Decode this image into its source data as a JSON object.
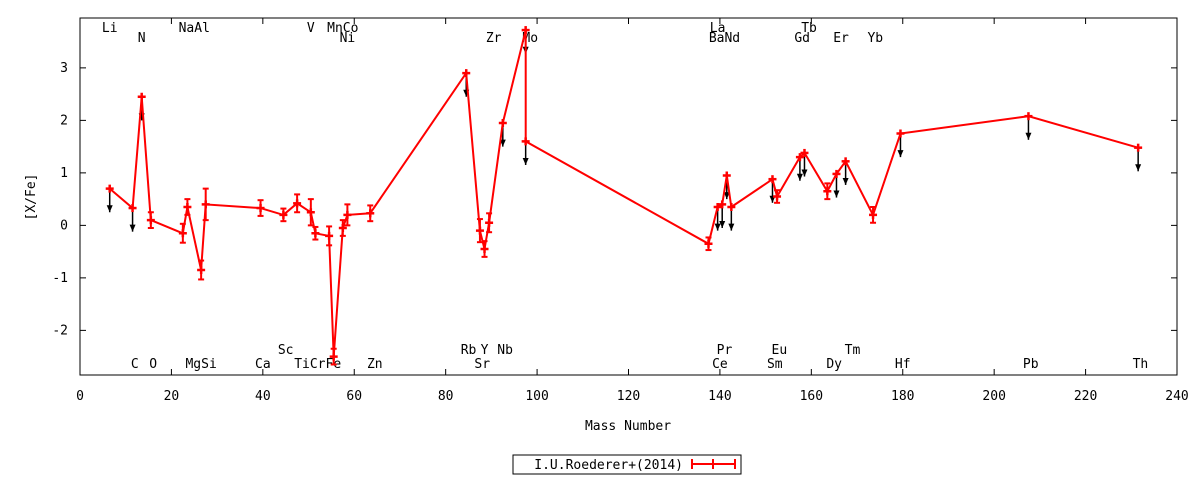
{
  "chart_data": {
    "type": "scatter",
    "title": "",
    "xlabel": "Mass Number",
    "ylabel": "[X/Fe]",
    "xlim": [
      0,
      240
    ],
    "ylim": [
      -2.85,
      3.95
    ],
    "xticks": [
      0,
      20,
      40,
      60,
      80,
      100,
      120,
      140,
      160,
      180,
      200,
      220,
      240
    ],
    "yticks": [
      -2,
      -1,
      0,
      1,
      2,
      3
    ],
    "grid": false,
    "legend_position": "bottom-center",
    "colors": {
      "series": "#ff0000",
      "upper_limit": "#000000"
    },
    "series": [
      {
        "name": "I.U.Roederer+(2014)",
        "points": [
          {
            "x": 6.5,
            "y": 0.7,
            "err": 0.0,
            "upper_limit": true
          },
          {
            "x": 11.5,
            "y": 0.33,
            "err": 0.0,
            "upper_limit": true
          },
          {
            "x": 13.5,
            "y": 2.45,
            "err": 0.0,
            "upper_limit": true
          },
          {
            "x": 15.5,
            "y": 0.1,
            "err": 0.15,
            "upper_limit": false
          },
          {
            "x": 22.5,
            "y": -0.15,
            "err": 0.18,
            "upper_limit": false
          },
          {
            "x": 23.5,
            "y": 0.35,
            "err": 0.15,
            "upper_limit": false
          },
          {
            "x": 26.5,
            "y": -0.85,
            "err": 0.18,
            "upper_limit": false
          },
          {
            "x": 27.5,
            "y": 0.4,
            "err": 0.3,
            "upper_limit": false
          },
          {
            "x": 39.5,
            "y": 0.33,
            "err": 0.15,
            "upper_limit": false
          },
          {
            "x": 44.5,
            "y": 0.2,
            "err": 0.12,
            "upper_limit": false
          },
          {
            "x": 47.5,
            "y": 0.42,
            "err": 0.17,
            "upper_limit": false
          },
          {
            "x": 50.5,
            "y": 0.25,
            "err": 0.25,
            "upper_limit": false
          },
          {
            "x": 51.5,
            "y": -0.15,
            "err": 0.12,
            "upper_limit": false
          },
          {
            "x": 54.5,
            "y": -0.2,
            "err": 0.18,
            "upper_limit": false
          },
          {
            "x": 55.5,
            "y": -2.5,
            "err": 0.15,
            "upper_limit": false
          },
          {
            "x": 57.5,
            "y": -0.05,
            "err": 0.15,
            "upper_limit": false
          },
          {
            "x": 58.5,
            "y": 0.2,
            "err": 0.2,
            "upper_limit": false
          },
          {
            "x": 63.5,
            "y": 0.23,
            "err": 0.15,
            "upper_limit": false
          },
          {
            "x": 84.5,
            "y": 2.9,
            "err": 0.0,
            "upper_limit": true
          },
          {
            "x": 87.5,
            "y": -0.1,
            "err": 0.22,
            "upper_limit": false
          },
          {
            "x": 88.5,
            "y": -0.45,
            "err": 0.15,
            "upper_limit": false
          },
          {
            "x": 89.5,
            "y": 0.05,
            "err": 0.18,
            "upper_limit": false
          },
          {
            "x": 92.5,
            "y": 1.95,
            "err": 0.0,
            "upper_limit": true
          },
          {
            "x": 97.5,
            "y": 3.72,
            "err": 0.0,
            "upper_limit": true
          },
          {
            "x": 97.5,
            "y": 1.6,
            "err": 0.0,
            "upper_limit": true
          },
          {
            "x": 137.5,
            "y": -0.35,
            "err": 0.12,
            "upper_limit": false
          },
          {
            "x": 139.5,
            "y": 0.35,
            "err": 0.0,
            "upper_limit": true
          },
          {
            "x": 140.5,
            "y": 0.4,
            "err": 0.0,
            "upper_limit": true
          },
          {
            "x": 141.5,
            "y": 0.95,
            "err": 0.0,
            "upper_limit": true
          },
          {
            "x": 142.5,
            "y": 0.35,
            "err": 0.0,
            "upper_limit": true
          },
          {
            "x": 151.5,
            "y": 0.88,
            "err": 0.0,
            "upper_limit": true
          },
          {
            "x": 152.5,
            "y": 0.55,
            "err": 0.12,
            "upper_limit": false
          },
          {
            "x": 157.5,
            "y": 1.3,
            "err": 0.0,
            "upper_limit": true
          },
          {
            "x": 158.5,
            "y": 1.38,
            "err": 0.0,
            "upper_limit": true
          },
          {
            "x": 163.5,
            "y": 0.65,
            "err": 0.15,
            "upper_limit": false
          },
          {
            "x": 165.5,
            "y": 0.98,
            "err": 0.0,
            "upper_limit": true
          },
          {
            "x": 167.5,
            "y": 1.22,
            "err": 0.0,
            "upper_limit": true
          },
          {
            "x": 173.5,
            "y": 0.2,
            "err": 0.15,
            "upper_limit": false
          },
          {
            "x": 179.5,
            "y": 1.75,
            "err": 0.0,
            "upper_limit": true
          },
          {
            "x": 207.5,
            "y": 2.08,
            "err": 0.0,
            "upper_limit": true
          },
          {
            "x": 231.5,
            "y": 1.48,
            "err": 0.0,
            "upper_limit": true
          }
        ]
      }
    ],
    "element_labels": [
      {
        "text": "Li",
        "x": 6.5,
        "row": "top1"
      },
      {
        "text": "N",
        "x": 13.5,
        "row": "top2"
      },
      {
        "text": "NaAl",
        "x": 25.0,
        "row": "top1"
      },
      {
        "text": "V",
        "x": 50.5,
        "row": "top1"
      },
      {
        "text": "MnCo",
        "x": 57.5,
        "row": "top1"
      },
      {
        "text": "Ni",
        "x": 58.5,
        "row": "top2"
      },
      {
        "text": "Zr",
        "x": 90.5,
        "row": "top2"
      },
      {
        "text": "Mo",
        "x": 98.5,
        "row": "top2"
      },
      {
        "text": "La",
        "x": 139.5,
        "row": "top1"
      },
      {
        "text": "BaNd",
        "x": 141.0,
        "row": "top2"
      },
      {
        "text": "Tb",
        "x": 159.5,
        "row": "top1"
      },
      {
        "text": "Gd",
        "x": 158.0,
        "row": "top2"
      },
      {
        "text": "Er",
        "x": 166.5,
        "row": "top2"
      },
      {
        "text": "Yb",
        "x": 174.0,
        "row": "top2"
      },
      {
        "text": "Sc",
        "x": 45.0,
        "row": "bot1"
      },
      {
        "text": "Rb",
        "x": 85.0,
        "row": "bot1"
      },
      {
        "text": "Y",
        "x": 88.5,
        "row": "bot1"
      },
      {
        "text": "Nb",
        "x": 93.0,
        "row": "bot1"
      },
      {
        "text": "Pr",
        "x": 141.0,
        "row": "bot1"
      },
      {
        "text": "Eu",
        "x": 153.0,
        "row": "bot1"
      },
      {
        "text": "Tm",
        "x": 169.0,
        "row": "bot1"
      },
      {
        "text": "C",
        "x": 12.0,
        "row": "bot2"
      },
      {
        "text": "O",
        "x": 16.0,
        "row": "bot2"
      },
      {
        "text": "MgSi",
        "x": 26.5,
        "row": "bot2"
      },
      {
        "text": "Ca",
        "x": 40.0,
        "row": "bot2"
      },
      {
        "text": "TiCrFe",
        "x": 52.0,
        "row": "bot2"
      },
      {
        "text": "Zn",
        "x": 64.5,
        "row": "bot2"
      },
      {
        "text": "Sr",
        "x": 88.0,
        "row": "bot2"
      },
      {
        "text": "Ce",
        "x": 140.0,
        "row": "bot2"
      },
      {
        "text": "Sm",
        "x": 152.0,
        "row": "bot2"
      },
      {
        "text": "Dy",
        "x": 165.0,
        "row": "bot2"
      },
      {
        "text": "Hf",
        "x": 180.0,
        "row": "bot2"
      },
      {
        "text": "Pb",
        "x": 208.0,
        "row": "bot2"
      },
      {
        "text": "Th",
        "x": 232.0,
        "row": "bot2"
      }
    ]
  }
}
